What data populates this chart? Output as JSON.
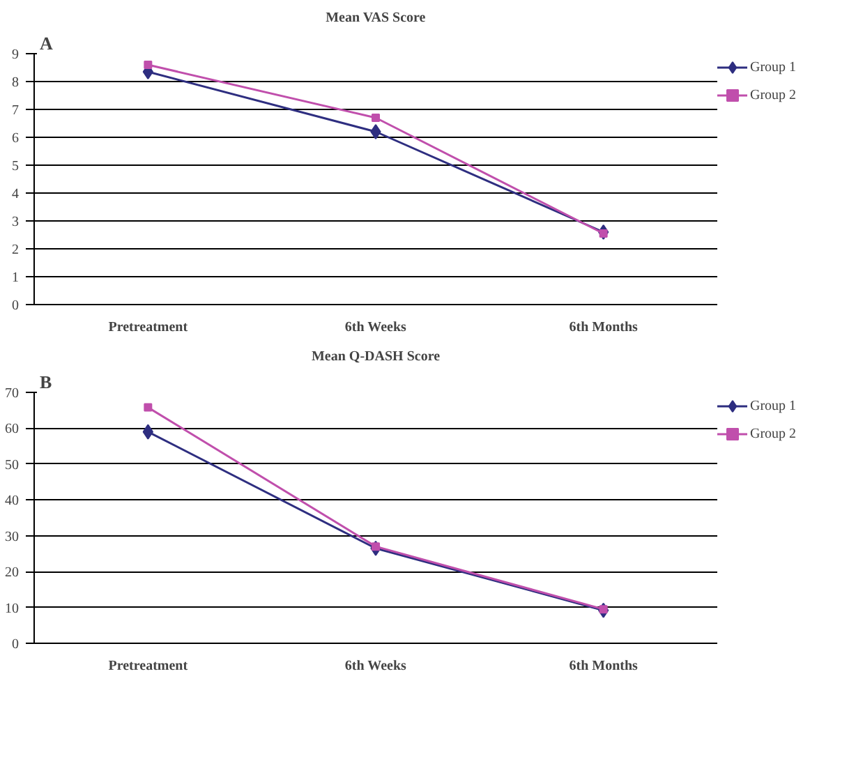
{
  "chart_data": [
    {
      "type": "line",
      "title": "Mean VAS Score",
      "annotations": [
        "A"
      ],
      "categories": [
        "Pretreatment",
        "6th Weeks",
        "6th Months"
      ],
      "ylim": [
        0,
        9
      ],
      "yticks": [
        0,
        1,
        2,
        3,
        4,
        5,
        6,
        7,
        8,
        9
      ],
      "grid": "y",
      "legend": "top right",
      "series": [
        {
          "name": "Group 1",
          "color": "#2e2e80",
          "marker": "diamond",
          "values": [
            8.35,
            6.2,
            2.6
          ]
        },
        {
          "name": "Group 2",
          "color": "#c04fac",
          "marker": "square",
          "values": [
            8.6,
            6.7,
            2.55
          ]
        }
      ]
    },
    {
      "type": "line",
      "title": "Mean Q-DASH Score",
      "annotations": [
        "B"
      ],
      "categories": [
        "Pretreatment",
        "6th Weeks",
        "6th Months"
      ],
      "ylim": [
        0,
        70
      ],
      "yticks": [
        0,
        10,
        20,
        30,
        40,
        50,
        60,
        70
      ],
      "grid": "y",
      "legend": "top right",
      "series": [
        {
          "name": "Group 1",
          "color": "#2e2e80",
          "marker": "diamond",
          "values": [
            59,
            26.5,
            9.2
          ]
        },
        {
          "name": "Group 2",
          "color": "#c04fac",
          "marker": "square",
          "values": [
            65.8,
            27,
            9.5
          ]
        }
      ]
    }
  ]
}
